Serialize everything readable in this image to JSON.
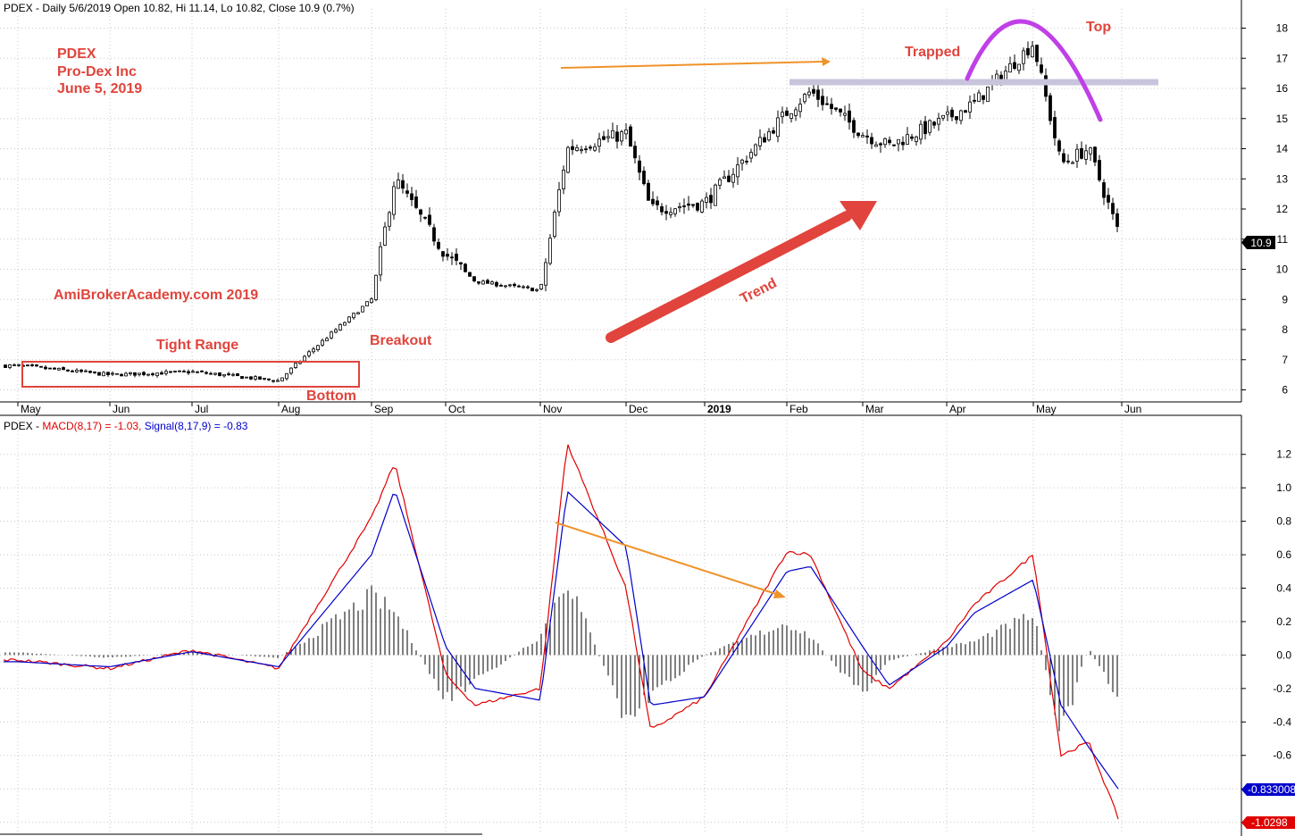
{
  "colors": {
    "annotation": "#e0443c",
    "macd_line": "#e00000",
    "signal_line": "#0000cc",
    "arrow_orange": "#f0922a",
    "top_arc": "#c040e8",
    "resistance": "#c8c4dc",
    "trend_arrow": "#e0443c"
  },
  "price_panel": {
    "header": "PDEX - Daily 5/6/2019 Open 10.82, Hi 11.14, Lo 10.82, Close 10.9 (0.7%)",
    "last_price_label": "10.9",
    "y_ticks": [
      "6",
      "7",
      "8",
      "9",
      "10",
      "11",
      "12",
      "13",
      "14",
      "15",
      "16",
      "17",
      "18"
    ],
    "x_ticks": [
      "May",
      "Jun",
      "Jul",
      "Aug",
      "Sep",
      "Oct",
      "Nov",
      "Dec",
      "2019",
      "Feb",
      "Mar",
      "Apr",
      "May",
      "Jun"
    ],
    "annotations": {
      "ticker": "PDEX",
      "company": "Pro-Dex Inc",
      "date": "June 5, 2019",
      "watermark": "AmiBrokerAcademy.com  2019",
      "tight_range": "Tight Range",
      "bottom": "Bottom",
      "breakout": "Breakout",
      "trend": "Trend",
      "trapped": "Trapped",
      "top": "Top"
    }
  },
  "macd_panel": {
    "header_prefix": "PDEX - ",
    "macd_label": "MACD(8,17) = -1.03, ",
    "signal_label": "Signal(8,17,9) = -0.83",
    "y_ticks": [
      "1.2",
      "1.0",
      "0.8",
      "0.6",
      "0.4",
      "0.2",
      "0.0",
      "-0.2",
      "-0.4",
      "-0.6",
      "-0.8",
      "-1.0"
    ],
    "signal_value_label": "-0.833008",
    "macd_value_label": "-1.0298"
  },
  "chart_data": [
    {
      "type": "candlestick",
      "title": "PDEX - Daily 5/6/2019 Open 10.82, Hi 11.14, Lo 10.82, Close 10.9 (0.7%)",
      "ylim": [
        5.6,
        18.4
      ],
      "x_ticks": [
        "May",
        "Jun",
        "Jul",
        "Aug",
        "Sep",
        "Oct",
        "Nov",
        "Dec",
        "2019",
        "Feb",
        "Mar",
        "Apr",
        "May",
        "Jun"
      ],
      "close_path": [
        [
          "May",
          6.8
        ],
        [
          "Jun",
          6.5
        ],
        [
          "Jul",
          6.6
        ],
        [
          "Aug",
          6.3
        ],
        [
          "Aug",
          7.2
        ],
        [
          "Sep",
          9.0
        ],
        [
          "Sep",
          13.0
        ],
        [
          "Oct",
          10.5
        ],
        [
          "Oct",
          9.6
        ],
        [
          "Nov",
          9.3
        ],
        [
          "Nov",
          14.0
        ],
        [
          "Dec",
          14.5
        ],
        [
          "Dec",
          12.0
        ],
        [
          "2019",
          12.2
        ],
        [
          "Feb",
          15.2
        ],
        [
          "Feb",
          15.9
        ],
        [
          "Mar",
          14.5
        ],
        [
          "Mar",
          14.1
        ],
        [
          "Apr",
          15.0
        ],
        [
          "Apr",
          15.5
        ],
        [
          "May",
          17.5
        ],
        [
          "May",
          13.5
        ],
        [
          "May",
          14.0
        ],
        [
          "Jun",
          10.9
        ]
      ],
      "last_close": 10.9
    },
    {
      "type": "line",
      "title": "PDEX - MACD(8,17) = -1.03, Signal(8,17,9) = -0.83",
      "ylim": [
        -1.05,
        1.3
      ],
      "series": [
        {
          "name": "MACD(8,17)",
          "values": [
            [
              "May",
              -0.03
            ],
            [
              "Jun",
              -0.08
            ],
            [
              "Jul",
              0.03
            ],
            [
              "Aug",
              -0.08
            ],
            [
              "Sep",
              0.82
            ],
            [
              "Sep",
              1.15
            ],
            [
              "Oct",
              -0.12
            ],
            [
              "Oct",
              -0.3
            ],
            [
              "Nov",
              -0.2
            ],
            [
              "Nov",
              1.27
            ],
            [
              "Dec",
              0.4
            ],
            [
              "Dec",
              -0.45
            ],
            [
              "2019",
              -0.25
            ],
            [
              "Feb",
              0.62
            ],
            [
              "Feb",
              0.6
            ],
            [
              "Mar",
              -0.1
            ],
            [
              "Mar",
              -0.2
            ],
            [
              "Apr",
              0.08
            ],
            [
              "Apr",
              0.3
            ],
            [
              "May",
              0.6
            ],
            [
              "May",
              -0.6
            ],
            [
              "May",
              -0.52
            ],
            [
              "Jun",
              -1.03
            ]
          ]
        },
        {
          "name": "Signal(8,17,9)",
          "values": [
            [
              "May",
              -0.04
            ],
            [
              "Jun",
              -0.07
            ],
            [
              "Jul",
              0.02
            ],
            [
              "Aug",
              -0.07
            ],
            [
              "Sep",
              0.6
            ],
            [
              "Sep",
              0.99
            ],
            [
              "Oct",
              0.05
            ],
            [
              "Oct",
              -0.2
            ],
            [
              "Nov",
              -0.27
            ],
            [
              "Nov",
              0.98
            ],
            [
              "Dec",
              0.65
            ],
            [
              "Dec",
              -0.3
            ],
            [
              "2019",
              -0.25
            ],
            [
              "Feb",
              0.5
            ],
            [
              "Feb",
              0.53
            ],
            [
              "Mar",
              0.05
            ],
            [
              "Mar",
              -0.18
            ],
            [
              "Apr",
              0.05
            ],
            [
              "Apr",
              0.25
            ],
            [
              "May",
              0.45
            ],
            [
              "May",
              -0.3
            ],
            [
              "May",
              -0.55
            ],
            [
              "Jun",
              -0.83
            ]
          ]
        }
      ],
      "last_values": {
        "MACD(8,17)": -1.03,
        "Signal(8,17,9)": -0.833008
      }
    }
  ]
}
